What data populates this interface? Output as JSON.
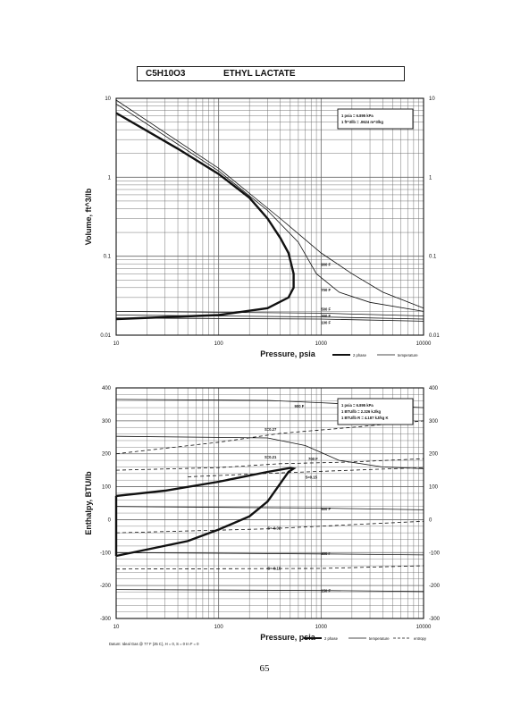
{
  "header": {
    "formula": "C5H10O3",
    "compound": "ETHYL LACTATE"
  },
  "page_number": "65",
  "chart_data": [
    {
      "type": "line",
      "x_scale": "log",
      "y_scale": "log",
      "xlim": [
        10,
        10000
      ],
      "ylim": [
        0.01,
        10
      ],
      "x_ticks": [
        "10",
        "100",
        "1000",
        "10000"
      ],
      "y_ticks_left": [
        "0.01",
        "0.1",
        "1",
        "10"
      ],
      "y_ticks_right": [
        "0.01",
        "0.1",
        "1",
        "10"
      ],
      "xlabel": "Pressure, psia",
      "ylabel": "Volume, ft^3/lb",
      "grid": true,
      "note_lines": [
        "1 psia = 6.895 kPa",
        "1 ft^3/lb = .0624 m^3/kg"
      ],
      "legend": [
        "2 phase",
        "temperature"
      ],
      "series": [
        {
          "name": "2 phase",
          "style": "thick",
          "points": [
            [
              10,
              6.5
            ],
            [
              40,
              2.3
            ],
            [
              100,
              1.1
            ],
            [
              200,
              0.55
            ],
            [
              300,
              0.3
            ],
            [
              400,
              0.17
            ],
            [
              480,
              0.11
            ],
            [
              540,
              0.06
            ],
            [
              540,
              0.04
            ],
            [
              480,
              0.03
            ],
            [
              300,
              0.022
            ],
            [
              100,
              0.018
            ],
            [
              10,
              0.016
            ]
          ]
        },
        {
          "name": "900 F",
          "style": "thin",
          "points": [
            [
              10,
              9.5
            ],
            [
              100,
              1.3
            ],
            [
              400,
              0.3
            ],
            [
              1000,
              0.11
            ],
            [
              2000,
              0.06
            ],
            [
              4000,
              0.035
            ],
            [
              10000,
              0.022
            ]
          ]
        },
        {
          "name": "700 F",
          "style": "thin",
          "points": [
            [
              10,
              8.5
            ],
            [
              100,
              1.2
            ],
            [
              300,
              0.38
            ],
            [
              600,
              0.15
            ],
            [
              900,
              0.06
            ],
            [
              1500,
              0.035
            ],
            [
              3000,
              0.026
            ],
            [
              10000,
              0.02
            ]
          ]
        },
        {
          "name": "500 F",
          "points": [
            [
              10,
              0.02
            ],
            [
              1000,
              0.019
            ],
            [
              10000,
              0.0175
            ]
          ]
        },
        {
          "name": "300 F",
          "points": [
            [
              10,
              0.018
            ],
            [
              1000,
              0.017
            ],
            [
              10000,
              0.016
            ]
          ]
        },
        {
          "name": "100 F",
          "points": [
            [
              10,
              0.0165
            ],
            [
              1000,
              0.016
            ],
            [
              10000,
              0.015
            ]
          ]
        }
      ],
      "curve_labels": [
        {
          "text": "900 F",
          "x": 1000,
          "y": 0.075
        },
        {
          "text": "700 F",
          "x": 1000,
          "y": 0.036
        },
        {
          "text": "500 F",
          "x": 1000,
          "y": 0.0205
        },
        {
          "text": "300 F",
          "x": 1000,
          "y": 0.0168
        },
        {
          "text": "100 F",
          "x": 1000,
          "y": 0.0138
        }
      ]
    },
    {
      "type": "line",
      "x_scale": "log",
      "y_scale": "linear",
      "xlim": [
        10,
        10000
      ],
      "ylim": [
        -300,
        400
      ],
      "x_ticks": [
        "10",
        "100",
        "1000",
        "10000"
      ],
      "y_ticks_left": [
        "-300",
        "-200",
        "-100",
        "0",
        "100",
        "200",
        "300",
        "400"
      ],
      "y_ticks_right": [
        "-300",
        "-200",
        "-100",
        "0",
        "100",
        "200",
        "300",
        "400"
      ],
      "xlabel": "Pressure, psia",
      "ylabel": "Enthalpy, BTU/lb",
      "grid": true,
      "note_lines": [
        "1 psia = 6.895 kPa",
        "1 BTU/lb = 2.326 kJ/kg",
        "1 BTU/lb R = 4.187 kJ/kg K"
      ],
      "legend": [
        "2 phase",
        "temperature",
        "entropy"
      ],
      "footnote": "Datum: Ideal Gas @ 77 F (25 C), H = 0, S = 0 In F = 0",
      "series": [
        {
          "name": "2 phase",
          "style": "thick",
          "points": [
            [
              10,
              -110
            ],
            [
              50,
              -65
            ],
            [
              100,
              -30
            ],
            [
              200,
              10
            ],
            [
              300,
              55
            ],
            [
              400,
              110
            ],
            [
              480,
              145
            ],
            [
              540,
              155
            ],
            [
              500,
              157
            ],
            [
              300,
              145
            ],
            [
              100,
              115
            ],
            [
              30,
              88
            ],
            [
              10,
              72
            ]
          ]
        },
        {
          "name": "2 phase vertical",
          "style": "thick",
          "points": [
            [
              10,
              72
            ],
            [
              10,
              -110
            ]
          ]
        },
        {
          "name": "900 F",
          "points": [
            [
              10,
              365
            ],
            [
              300,
              362
            ],
            [
              1000,
              355
            ],
            [
              10000,
              340
            ]
          ]
        },
        {
          "name": "700 F",
          "points": [
            [
              10,
              253
            ],
            [
              300,
              248
            ],
            [
              700,
              225
            ],
            [
              1500,
              180
            ],
            [
              4000,
              160
            ],
            [
              10000,
              155
            ]
          ]
        },
        {
          "name": "500 F",
          "points": [
            [
              10,
              40
            ],
            [
              1000,
              35
            ],
            [
              10000,
              30
            ]
          ]
        },
        {
          "name": "300 F",
          "points": [
            [
              10,
              -100
            ],
            [
              1000,
              -104
            ],
            [
              10000,
              -107
            ]
          ]
        },
        {
          "name": "150 F",
          "points": [
            [
              10,
              -212
            ],
            [
              1000,
              -215
            ],
            [
              10000,
              -218
            ]
          ]
        },
        {
          "name": "S=0.27",
          "style": "dashed",
          "points": [
            [
              10,
              200
            ],
            [
              100,
              235
            ],
            [
              400,
              262
            ],
            [
              2000,
              280
            ],
            [
              10000,
              300
            ]
          ]
        },
        {
          "name": "S=0.21",
          "style": "dashed",
          "points": [
            [
              10,
              150
            ],
            [
              100,
              158
            ],
            [
              400,
              170
            ],
            [
              2000,
              175
            ],
            [
              10000,
              185
            ]
          ]
        },
        {
          "name": "S=0.15",
          "style": "dashed",
          "points": [
            [
              50,
              130
            ],
            [
              400,
              142
            ],
            [
              2000,
              150
            ],
            [
              10000,
              158
            ]
          ]
        },
        {
          "name": "S=-0.02",
          "style": "dashed",
          "points": [
            [
              10,
              -40
            ],
            [
              300,
              -28
            ],
            [
              2000,
              -15
            ],
            [
              10000,
              -5
            ]
          ]
        },
        {
          "name": "S=-0.15",
          "style": "dashed",
          "points": [
            [
              10,
              -150
            ],
            [
              1000,
              -148
            ],
            [
              10000,
              -140
            ]
          ]
        }
      ],
      "curve_labels": [
        {
          "text": "900 F",
          "x": 550,
          "y": 340
        },
        {
          "text": "700 F",
          "x": 750,
          "y": 180
        },
        {
          "text": "500 F",
          "x": 1000,
          "y": 28
        },
        {
          "text": "300 F",
          "x": 1000,
          "y": -107
        },
        {
          "text": "150 F",
          "x": 1000,
          "y": -220
        },
        {
          "text": "S=0.27",
          "x": 280,
          "y": 270
        },
        {
          "text": "S=0.21",
          "x": 280,
          "y": 185
        },
        {
          "text": "S=0.15",
          "x": 700,
          "y": 125
        },
        {
          "text": "S=-0.02",
          "x": 300,
          "y": -30
        },
        {
          "text": "S=-0.15",
          "x": 300,
          "y": -152
        }
      ]
    }
  ]
}
